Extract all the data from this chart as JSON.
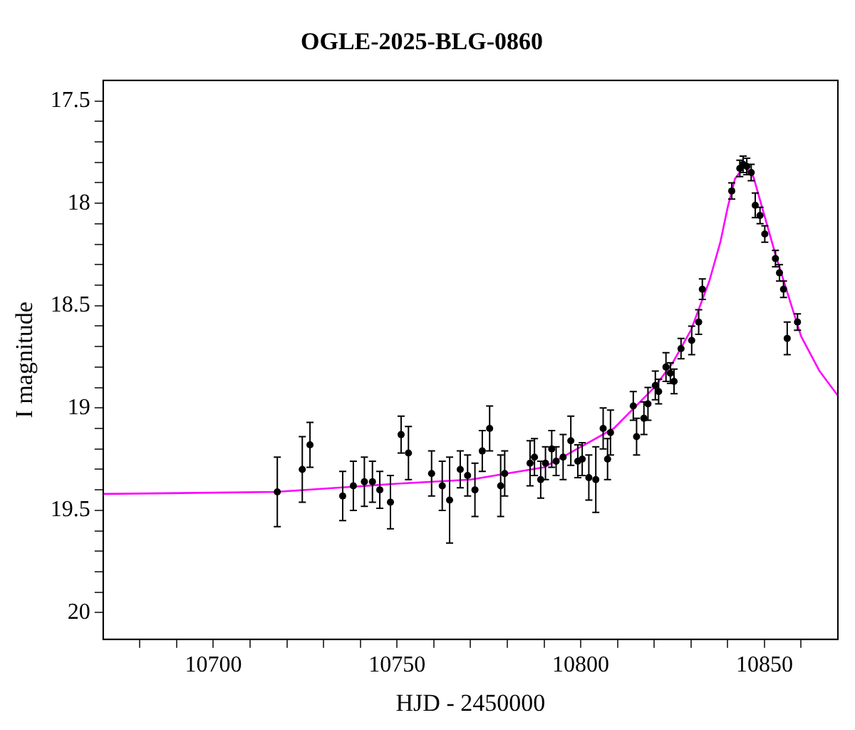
{
  "chart_data": {
    "type": "scatter",
    "title": "OGLE-2025-BLG-0860",
    "xlabel": "HJD - 2450000",
    "ylabel": "I magnitude",
    "xlim": [
      10670,
      10870
    ],
    "ylim": [
      20.13,
      17.4
    ],
    "xticks": [
      {
        "value": 10680,
        "label": null
      },
      {
        "value": 10690,
        "label": null
      },
      10700,
      {
        "value": 10710,
        "label": null
      },
      {
        "value": 10720,
        "label": null
      },
      {
        "value": 10730,
        "label": null
      },
      {
        "value": 10740,
        "label": null
      },
      10750,
      {
        "value": 10760,
        "label": null
      },
      {
        "value": 10770,
        "label": null
      },
      {
        "value": 10780,
        "label": null
      },
      {
        "value": 10790,
        "label": null
      },
      10800,
      {
        "value": 10810,
        "label": null
      },
      {
        "value": 10820,
        "label": null
      },
      {
        "value": 10830,
        "label": null
      },
      {
        "value": 10840,
        "label": null
      },
      10850,
      {
        "value": 10860,
        "label": null
      }
    ],
    "yticks": [
      17.5,
      {
        "value": 17.6,
        "label": null
      },
      {
        "value": 17.7,
        "label": null
      },
      {
        "value": 17.8,
        "label": null
      },
      {
        "value": 17.9,
        "label": null
      },
      18,
      {
        "value": 18.1,
        "label": null
      },
      {
        "value": 18.2,
        "label": null
      },
      {
        "value": 18.3,
        "label": null
      },
      {
        "value": 18.4,
        "label": null
      },
      18.5,
      {
        "value": 18.6,
        "label": null
      },
      {
        "value": 18.7,
        "label": null
      },
      {
        "value": 18.8,
        "label": null
      },
      {
        "value": 18.9,
        "label": null
      },
      19,
      {
        "value": 19.1,
        "label": null
      },
      {
        "value": 19.2,
        "label": null
      },
      {
        "value": 19.3,
        "label": null
      },
      {
        "value": 19.4,
        "label": null
      },
      19.5,
      {
        "value": 19.6,
        "label": null
      },
      {
        "value": 19.7,
        "label": null
      },
      {
        "value": 19.8,
        "label": null
      },
      {
        "value": 19.9,
        "label": null
      },
      20
    ],
    "grid": false,
    "legend": false,
    "series": [
      {
        "type": "scatter",
        "color": "#000000",
        "marker": "circle",
        "x": [
          10717.4,
          10724.2,
          10726.3,
          10735.2,
          10738.1,
          10741.1,
          10743.3,
          10745.3,
          10748.2,
          10751.1,
          10753.1,
          10759.4,
          10762.3,
          10764.3,
          10767.2,
          10769.2,
          10771.2,
          10773.2,
          10775.2,
          10778.2,
          10779.3,
          10786.2,
          10787.4,
          10789.1,
          10790.4,
          10792.1,
          10793.3,
          10795.2,
          10797.3,
          10799.2,
          10800.4,
          10802.2,
          10804.1,
          10806.1,
          10807.3,
          10808.1,
          10814.3,
          10815.2,
          10817.2,
          10818.3,
          10820.3,
          10821.2,
          10823.2,
          10824.4,
          10825.4,
          10827.3,
          10830.2,
          10832.1,
          10833.1,
          10841.1,
          10843.3,
          10844.2,
          10845.2,
          10846.4,
          10847.5,
          10848.8,
          10850.1,
          10853.0,
          10854.1,
          10855.2,
          10856.2,
          10859.0
        ],
        "values": [
          19.41,
          19.3,
          19.18,
          19.43,
          19.38,
          19.36,
          19.36,
          19.4,
          19.46,
          19.13,
          19.22,
          19.32,
          19.38,
          19.45,
          19.3,
          19.33,
          19.4,
          19.21,
          19.1,
          19.38,
          19.32,
          19.27,
          19.24,
          19.35,
          19.27,
          19.2,
          19.26,
          19.24,
          19.16,
          19.26,
          19.25,
          19.34,
          19.35,
          19.1,
          19.25,
          19.12,
          18.99,
          19.14,
          19.05,
          18.98,
          18.89,
          18.92,
          18.8,
          18.83,
          18.87,
          18.71,
          18.67,
          18.58,
          18.42,
          17.94,
          17.83,
          17.81,
          17.82,
          17.85,
          18.01,
          18.06,
          18.15,
          18.27,
          18.34,
          18.42,
          18.66,
          18.58
        ],
        "errors": [
          0.17,
          0.16,
          0.11,
          0.12,
          0.12,
          0.12,
          0.1,
          0.09,
          0.13,
          0.09,
          0.13,
          0.11,
          0.12,
          0.21,
          0.09,
          0.1,
          0.13,
          0.1,
          0.11,
          0.15,
          0.11,
          0.11,
          0.09,
          0.09,
          0.08,
          0.09,
          0.07,
          0.11,
          0.12,
          0.08,
          0.08,
          0.11,
          0.16,
          0.1,
          0.1,
          0.11,
          0.07,
          0.09,
          0.08,
          0.08,
          0.07,
          0.06,
          0.07,
          0.05,
          0.06,
          0.05,
          0.07,
          0.06,
          0.05,
          0.04,
          0.04,
          0.04,
          0.04,
          0.04,
          0.06,
          0.04,
          0.04,
          0.04,
          0.04,
          0.04,
          0.08,
          0.04
        ]
      },
      {
        "type": "line",
        "color": "#ff00ff",
        "marker": "none",
        "x": [
          10670,
          10717,
          10750,
          10770,
          10790,
          10800,
          10809,
          10820,
          10825,
          10830,
          10835,
          10838,
          10840,
          10842,
          10844.5,
          10847,
          10850,
          10853,
          10857,
          10860,
          10865,
          10870
        ],
        "values": [
          19.42,
          19.41,
          19.37,
          19.35,
          19.29,
          19.19,
          19.1,
          18.9,
          18.78,
          18.62,
          18.38,
          18.19,
          18.02,
          17.88,
          17.82,
          17.87,
          18.06,
          18.25,
          18.48,
          18.65,
          18.82,
          18.94
        ]
      }
    ]
  }
}
